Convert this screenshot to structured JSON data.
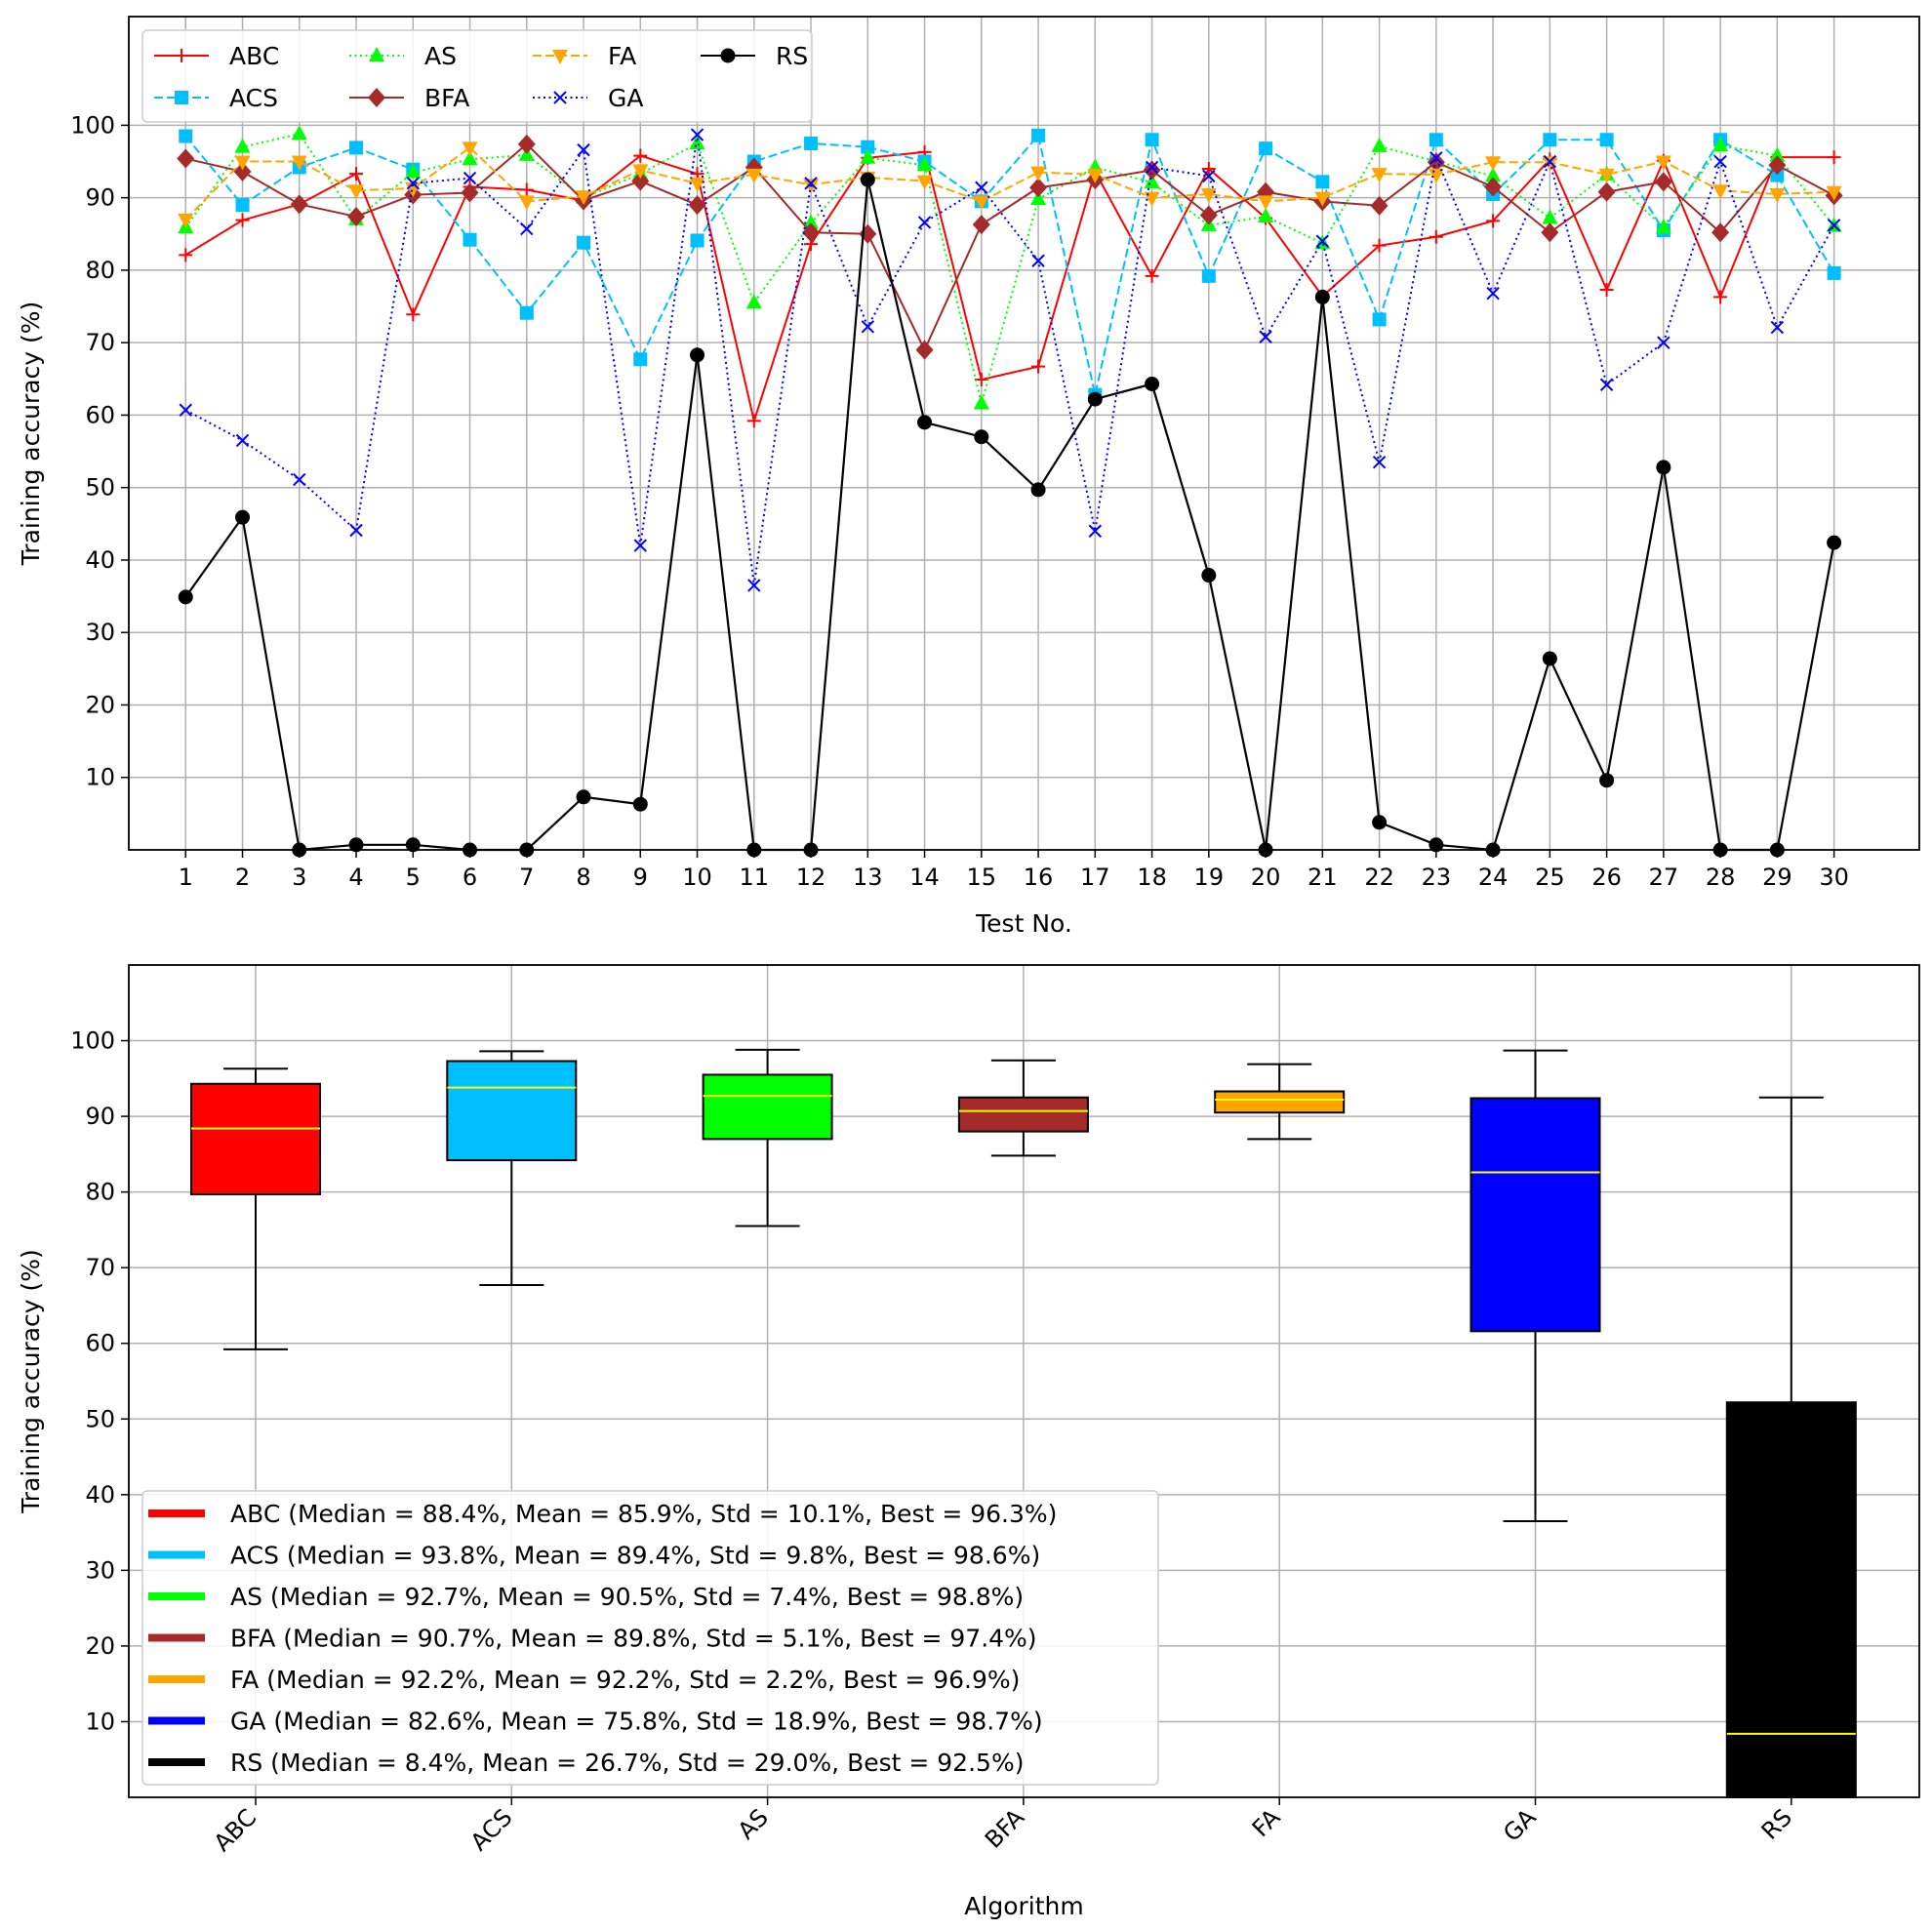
{
  "chart_data": [
    {
      "type": "line",
      "xlabel": "Test No.",
      "ylabel": "Training accuracy (%)",
      "x": [
        1,
        2,
        3,
        4,
        5,
        6,
        7,
        8,
        9,
        10,
        11,
        12,
        13,
        14,
        15,
        16,
        17,
        18,
        19,
        20,
        21,
        22,
        23,
        24,
        25,
        26,
        27,
        28,
        29,
        30
      ],
      "xticks": [
        "1",
        "2",
        "3",
        "4",
        "5",
        "6",
        "7",
        "8",
        "9",
        "10",
        "11",
        "12",
        "13",
        "14",
        "15",
        "16",
        "17",
        "18",
        "19",
        "20",
        "21",
        "22",
        "23",
        "24",
        "25",
        "26",
        "27",
        "28",
        "29",
        "30"
      ],
      "yticks": [
        "10",
        "20",
        "30",
        "40",
        "50",
        "60",
        "70",
        "80",
        "90",
        "100"
      ],
      "xlim": [
        0.0,
        31.5
      ],
      "ylim": [
        0,
        115
      ],
      "grid": true,
      "legend_position": "top-left",
      "series": [
        {
          "name": "ABC",
          "color": "#ff0000",
          "dash": "solid",
          "marker": "plus",
          "values": [
            82.1,
            86.9,
            89.1,
            93.3,
            73.9,
            91.5,
            91.1,
            89.6,
            95.8,
            93.3,
            59.2,
            83.6,
            95.5,
            96.3,
            64.9,
            66.7,
            93.6,
            79.2,
            94.0,
            87.2,
            76.4,
            83.4,
            84.6,
            86.8,
            95.3,
            77.3,
            95.1,
            76.3,
            95.6,
            95.6
          ]
        },
        {
          "name": "ACS",
          "color": "#00bfff",
          "dash": "dashed",
          "marker": "square",
          "values": [
            98.5,
            89.0,
            94.2,
            96.9,
            93.9,
            84.2,
            74.1,
            83.8,
            67.7,
            84.1,
            95.0,
            97.5,
            97.0,
            95.0,
            89.5,
            98.6,
            62.8,
            98.0,
            79.2,
            96.8,
            92.2,
            73.2,
            98.0,
            90.5,
            98.0,
            98.0,
            85.5,
            98.0,
            93.1,
            79.6
          ]
        },
        {
          "name": "AS",
          "color": "#00ff00",
          "dash": "dotted",
          "marker": "triangle-up",
          "values": [
            85.9,
            97.0,
            98.8,
            87.0,
            93.5,
            95.3,
            95.9,
            90.0,
            93.3,
            97.5,
            75.5,
            86.5,
            95.5,
            94.5,
            61.6,
            89.8,
            94.2,
            92.1,
            86.2,
            87.4,
            83.7,
            97.1,
            95.0,
            93.0,
            87.2,
            93.2,
            85.9,
            97.2,
            95.8,
            86.1
          ]
        },
        {
          "name": "BFA",
          "color": "#a52a2a",
          "dash": "solid",
          "marker": "diamond",
          "values": [
            95.4,
            93.6,
            89.1,
            87.4,
            90.4,
            90.7,
            97.4,
            89.6,
            92.3,
            89.0,
            94.2,
            85.2,
            85.0,
            69.0,
            86.3,
            91.4,
            92.5,
            93.8,
            87.6,
            90.8,
            89.5,
            88.9,
            94.9,
            91.5,
            85.2,
            90.8,
            92.2,
            85.2,
            94.5,
            90.3
          ]
        },
        {
          "name": "FA",
          "color": "#ffa500",
          "dash": "dashed",
          "marker": "triangle-down",
          "values": [
            87.0,
            95.0,
            95.0,
            91.0,
            91.3,
            96.9,
            89.5,
            90.2,
            93.8,
            92.0,
            93.2,
            91.8,
            92.8,
            92.3,
            89.5,
            93.5,
            93.2,
            90.0,
            90.5,
            89.5,
            90.0,
            93.3,
            93.2,
            94.9,
            94.9,
            93.2,
            95.0,
            91.0,
            90.5,
            90.8
          ]
        },
        {
          "name": "GA",
          "color": "#0000ff",
          "dash": "dotted",
          "marker": "x",
          "values": [
            60.7,
            56.5,
            51.1,
            44.1,
            92.0,
            92.7,
            85.7,
            96.6,
            42.0,
            98.7,
            36.5,
            92.0,
            72.2,
            86.6,
            91.4,
            81.3,
            44.0,
            94.2,
            93.0,
            70.8,
            84.0,
            53.5,
            95.5,
            76.8,
            95.0,
            64.2,
            70.0,
            95.0,
            72.1,
            86.2
          ]
        },
        {
          "name": "RS",
          "color": "#000000",
          "dash": "solid",
          "marker": "circle",
          "values": [
            34.9,
            45.9,
            0.0,
            0.7,
            0.7,
            0.0,
            0.0,
            7.3,
            6.3,
            68.3,
            0.0,
            0.0,
            92.5,
            59.0,
            57.0,
            49.7,
            62.2,
            64.3,
            37.9,
            0.0,
            76.3,
            3.8,
            0.7,
            0.0,
            26.4,
            9.6,
            52.8,
            0.0,
            0.0,
            42.4
          ]
        }
      ]
    },
    {
      "type": "box",
      "xlabel": "Algorithm",
      "ylabel": "Training accuracy (%)",
      "categories": [
        "ABC",
        "ACS",
        "AS",
        "BFA",
        "FA",
        "GA",
        "RS"
      ],
      "yticks": [
        "10",
        "20",
        "30",
        "40",
        "50",
        "60",
        "70",
        "80",
        "90",
        "100"
      ],
      "ylim": [
        0,
        110
      ],
      "grid": true,
      "legend_position": "bottom-left",
      "median_color": "#ffff00",
      "boxes": [
        {
          "name": "ABC",
          "color": "#ff0000",
          "q1": 79.7,
          "median": 88.4,
          "q3": 94.3,
          "whisker_low": 59.2,
          "whisker_high": 96.3
        },
        {
          "name": "ACS",
          "color": "#00bfff",
          "q1": 84.2,
          "median": 93.8,
          "q3": 97.3,
          "whisker_low": 67.7,
          "whisker_high": 98.6
        },
        {
          "name": "AS",
          "color": "#00ff00",
          "q1": 87.0,
          "median": 92.7,
          "q3": 95.5,
          "whisker_low": 75.5,
          "whisker_high": 98.8
        },
        {
          "name": "BFA",
          "color": "#a52a2a",
          "q1": 88.0,
          "median": 90.7,
          "q3": 92.5,
          "whisker_low": 84.8,
          "whisker_high": 97.4
        },
        {
          "name": "FA",
          "color": "#ffa500",
          "q1": 90.5,
          "median": 92.2,
          "q3": 93.3,
          "whisker_low": 87.0,
          "whisker_high": 96.9
        },
        {
          "name": "GA",
          "color": "#0000ff",
          "q1": 61.6,
          "median": 82.6,
          "q3": 92.4,
          "whisker_low": 36.5,
          "whisker_high": 98.7
        },
        {
          "name": "RS",
          "color": "#000000",
          "q1": 0.0,
          "median": 8.4,
          "q3": 52.2,
          "whisker_low": 0.0,
          "whisker_high": 92.5
        }
      ],
      "legend": [
        {
          "text": "ABC (Median = 88.4%, Mean = 85.9%, Std = 10.1%, Best = 96.3%)",
          "color": "#ff0000"
        },
        {
          "text": "ACS (Median = 93.8%, Mean = 89.4%, Std = 9.8%, Best = 98.6%)",
          "color": "#00bfff"
        },
        {
          "text": "AS (Median = 92.7%, Mean = 90.5%, Std = 7.4%, Best = 98.8%)",
          "color": "#00ff00"
        },
        {
          "text": "BFA (Median = 90.7%, Mean = 89.8%, Std = 5.1%, Best = 97.4%)",
          "color": "#a52a2a"
        },
        {
          "text": "FA (Median = 92.2%, Mean = 92.2%, Std = 2.2%, Best = 96.9%)",
          "color": "#ffa500"
        },
        {
          "text": "GA (Median = 82.6%, Mean = 75.8%, Std = 18.9%, Best = 98.7%)",
          "color": "#0000ff"
        },
        {
          "text": "RS (Median = 8.4%, Mean = 26.7%, Std = 29.0%, Best = 92.5%)",
          "color": "#000000"
        }
      ]
    }
  ]
}
